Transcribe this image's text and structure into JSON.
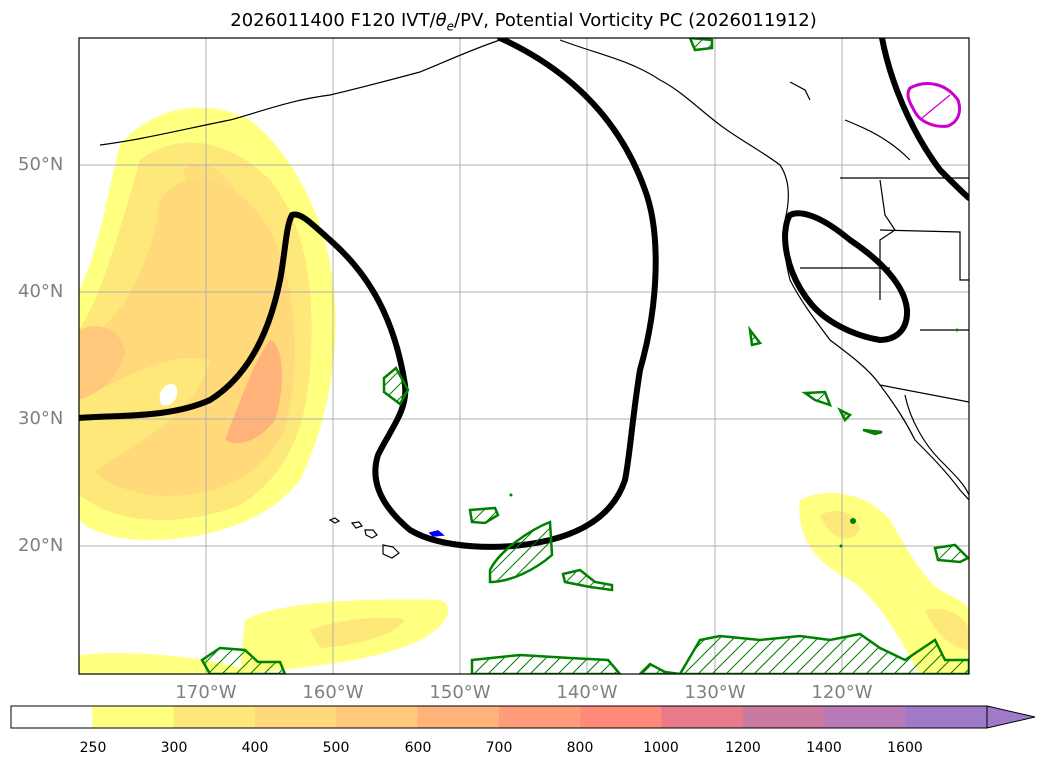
{
  "title": {
    "prefix": "2026011400 F120 IVT/",
    "theta": "θ",
    "theta_sub": "e",
    "suffix": "/PV, Potential Vorticity PC (2026011912)"
  },
  "map": {
    "lat_labels": [
      "50°N",
      "40°N",
      "30°N",
      "20°N"
    ],
    "lon_labels": [
      "170°W",
      "160°W",
      "150°W",
      "140°W",
      "130°W",
      "120°W"
    ],
    "lat_range": [
      10,
      60
    ],
    "lon_range": [
      -180,
      -110
    ]
  },
  "colorbar": {
    "ticks": [
      "250",
      "300",
      "400",
      "500",
      "600",
      "700",
      "800",
      "1000",
      "1200",
      "1400",
      "1600"
    ],
    "colors": [
      "#ffffff",
      "#ffff80",
      "#ffe87a",
      "#ffd97a",
      "#ffc87a",
      "#ffb27a",
      "#ff9c7a",
      "#ff8a7a",
      "#e87a8a",
      "#c87aa0",
      "#b87ab8",
      "#a07ac8"
    ],
    "extend": "max"
  },
  "colors": {
    "pv_contour": "#000000",
    "hatch": "#008000",
    "magenta": "#cc00cc",
    "blue": "#0000ff",
    "coast": "#000000"
  }
}
